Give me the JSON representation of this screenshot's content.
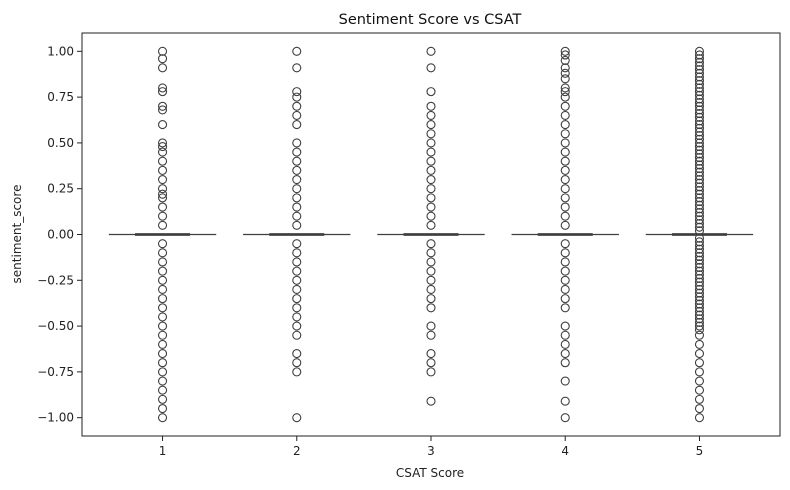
{
  "chart_data": {
    "type": "box",
    "title": "Sentiment Score vs CSAT",
    "xlabel": "CSAT Score",
    "ylabel": "sentiment_score",
    "categories": [
      "1",
      "2",
      "3",
      "4",
      "5"
    ],
    "ylim": [
      -1.1,
      1.1
    ],
    "xlim": [
      0.4,
      5.6
    ],
    "yticks": [
      -1.0,
      -0.75,
      -0.5,
      -0.25,
      0.0,
      0.25,
      0.5,
      0.75,
      1.0
    ],
    "ytick_labels": [
      "−1.00",
      "−0.75",
      "−0.50",
      "−0.25",
      "0.00",
      "0.25",
      "0.50",
      "0.75",
      "1.00"
    ],
    "grid": false,
    "box_color": "#3f3f3f",
    "boxes": [
      {
        "category": "1",
        "q1": 0.0,
        "median": 0.0,
        "q3": 0.0,
        "whisker_low": 0.0,
        "whisker_high": 0.0,
        "outliers": [
          1.0,
          0.96,
          0.91,
          0.8,
          0.78,
          0.7,
          0.68,
          0.6,
          0.5,
          0.48,
          0.45,
          0.4,
          0.35,
          0.3,
          0.25,
          0.22,
          0.2,
          0.15,
          0.1,
          0.05,
          -0.05,
          -0.1,
          -0.15,
          -0.2,
          -0.25,
          -0.3,
          -0.35,
          -0.4,
          -0.45,
          -0.5,
          -0.55,
          -0.6,
          -0.65,
          -0.7,
          -0.75,
          -0.8,
          -0.85,
          -0.9,
          -0.95,
          -1.0
        ]
      },
      {
        "category": "2",
        "q1": 0.0,
        "median": 0.0,
        "q3": 0.0,
        "whisker_low": 0.0,
        "whisker_high": 0.0,
        "outliers": [
          1.0,
          0.91,
          0.78,
          0.75,
          0.7,
          0.65,
          0.6,
          0.5,
          0.45,
          0.4,
          0.35,
          0.3,
          0.25,
          0.2,
          0.15,
          0.1,
          0.05,
          -0.05,
          -0.1,
          -0.15,
          -0.2,
          -0.25,
          -0.3,
          -0.35,
          -0.4,
          -0.45,
          -0.5,
          -0.55,
          -0.65,
          -0.7,
          -0.75,
          -1.0
        ]
      },
      {
        "category": "3",
        "q1": 0.0,
        "median": 0.0,
        "q3": 0.0,
        "whisker_low": 0.0,
        "whisker_high": 0.0,
        "outliers": [
          1.0,
          0.91,
          0.78,
          0.7,
          0.65,
          0.6,
          0.55,
          0.5,
          0.45,
          0.4,
          0.35,
          0.3,
          0.25,
          0.2,
          0.15,
          0.1,
          0.05,
          -0.05,
          -0.1,
          -0.15,
          -0.2,
          -0.25,
          -0.3,
          -0.35,
          -0.4,
          -0.5,
          -0.55,
          -0.65,
          -0.7,
          -0.75,
          -0.91
        ]
      },
      {
        "category": "4",
        "q1": 0.0,
        "median": 0.0,
        "q3": 0.0,
        "whisker_low": 0.0,
        "whisker_high": 0.0,
        "outliers": [
          1.0,
          0.98,
          0.95,
          0.91,
          0.88,
          0.85,
          0.8,
          0.78,
          0.75,
          0.7,
          0.65,
          0.6,
          0.55,
          0.5,
          0.45,
          0.4,
          0.35,
          0.3,
          0.25,
          0.2,
          0.15,
          0.1,
          0.05,
          -0.05,
          -0.1,
          -0.15,
          -0.2,
          -0.25,
          -0.3,
          -0.35,
          -0.4,
          -0.5,
          -0.55,
          -0.6,
          -0.65,
          -0.7,
          -0.8,
          -0.91,
          -1.0
        ]
      },
      {
        "category": "5",
        "q1": 0.0,
        "median": 0.0,
        "q3": 0.0,
        "whisker_low": 0.0,
        "whisker_high": 0.0,
        "outliers": [
          1.0,
          0.98,
          0.96,
          0.94,
          0.92,
          0.9,
          0.88,
          0.86,
          0.84,
          0.82,
          0.8,
          0.78,
          0.76,
          0.74,
          0.72,
          0.7,
          0.68,
          0.66,
          0.64,
          0.62,
          0.6,
          0.58,
          0.56,
          0.54,
          0.52,
          0.5,
          0.48,
          0.46,
          0.44,
          0.42,
          0.4,
          0.38,
          0.36,
          0.34,
          0.32,
          0.3,
          0.28,
          0.26,
          0.24,
          0.22,
          0.2,
          0.18,
          0.16,
          0.14,
          0.12,
          0.1,
          0.08,
          0.06,
          0.04,
          0.02,
          -0.02,
          -0.04,
          -0.06,
          -0.08,
          -0.1,
          -0.12,
          -0.14,
          -0.16,
          -0.18,
          -0.2,
          -0.22,
          -0.24,
          -0.26,
          -0.28,
          -0.3,
          -0.32,
          -0.34,
          -0.36,
          -0.38,
          -0.4,
          -0.42,
          -0.44,
          -0.46,
          -0.48,
          -0.5,
          -0.52,
          -0.55,
          -0.6,
          -0.65,
          -0.7,
          -0.75,
          -0.8,
          -0.85,
          -0.9,
          -0.95,
          -1.0
        ]
      }
    ]
  }
}
